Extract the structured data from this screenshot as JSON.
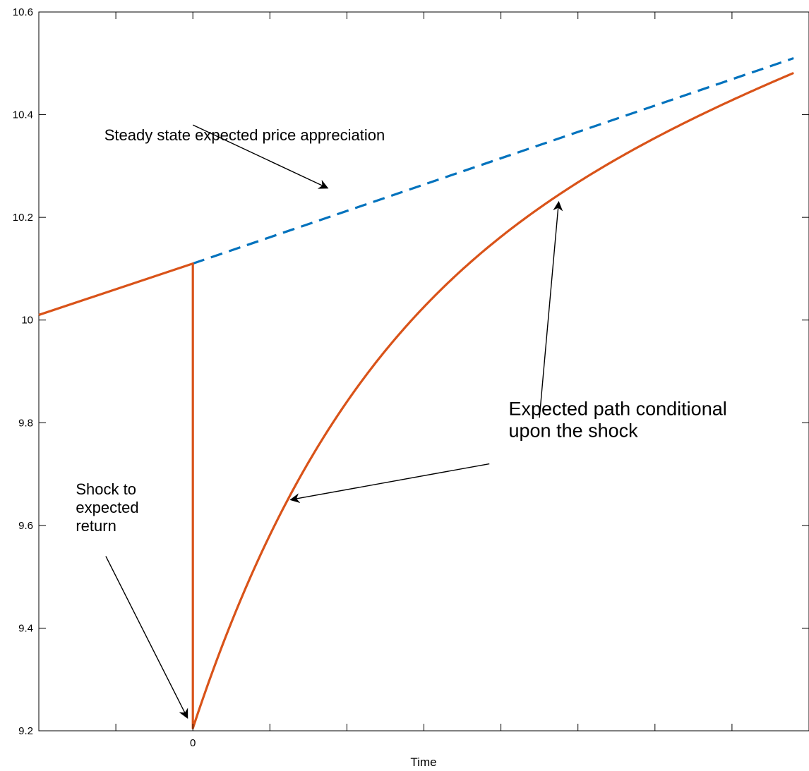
{
  "chart_data": {
    "type": "line",
    "title": "",
    "xlabel": "Time",
    "ylabel": "",
    "xlim": [
      -2,
      8
    ],
    "ylim": [
      9.2,
      10.6
    ],
    "grid": false,
    "x_ticks": [
      -1,
      0,
      1,
      2,
      3,
      4,
      5,
      6,
      7,
      8
    ],
    "x_tick_labels": [
      "",
      "0",
      "",
      "",
      "",
      "",
      "",
      "",
      "",
      ""
    ],
    "y_ticks": [
      9.2,
      9.4,
      9.6,
      9.8,
      10,
      10.2,
      10.4,
      10.6
    ],
    "y_tick_labels": [
      "9.2",
      "9.4",
      "9.6",
      "9.8",
      "10",
      "10.2",
      "10.4",
      "10.6"
    ],
    "series": [
      {
        "color": "#d95319",
        "style": "solid",
        "segments": [
          {
            "kind": "linear",
            "x": [
              -2,
              0
            ],
            "y": [
              10.01,
              10.11
            ]
          },
          {
            "kind": "linear",
            "x": [
              0,
              0
            ],
            "y": [
              10.11,
              9.205
            ]
          },
          {
            "kind": "exp-recovery",
            "x_start": 0,
            "x_end": 7.8,
            "y_start": 9.205,
            "steady_intercept": 10.11,
            "steady_slope": 0.0512,
            "decay_rate": 0.445
          }
        ]
      },
      {
        "color": "#0072bd",
        "style": "dashed",
        "segments": [
          {
            "kind": "linear",
            "x": [
              0,
              7.8
            ],
            "y": [
              10.11,
              10.51
            ]
          }
        ]
      }
    ],
    "annotations": [
      {
        "lines": [
          "Steady state expected price appreciation"
        ],
        "size": "small",
        "anchor": [
          -1.15,
          10.35
        ],
        "arrow_from": [
          0,
          10.38
        ],
        "arrow_to": [
          1.75,
          10.257
        ]
      },
      {
        "lines": [
          "Expected path conditional",
          "upon the shock"
        ],
        "size": "large",
        "anchor": [
          4.1,
          9.815
        ],
        "arrow_from": [
          4.5,
          9.81
        ],
        "arrow_to": [
          4.75,
          10.23
        ]
      },
      {
        "lines": [],
        "size": "large",
        "anchor": [
          4.1,
          9.815
        ],
        "arrow_from": [
          3.85,
          9.72
        ],
        "arrow_to": [
          1.27,
          9.65
        ]
      },
      {
        "lines": [
          "Shock to",
          "expected",
          "return"
        ],
        "size": "small",
        "anchor": [
          -1.52,
          9.66
        ],
        "arrow_from": [
          -1.13,
          9.54
        ],
        "arrow_to": [
          -0.07,
          9.225
        ]
      }
    ]
  }
}
